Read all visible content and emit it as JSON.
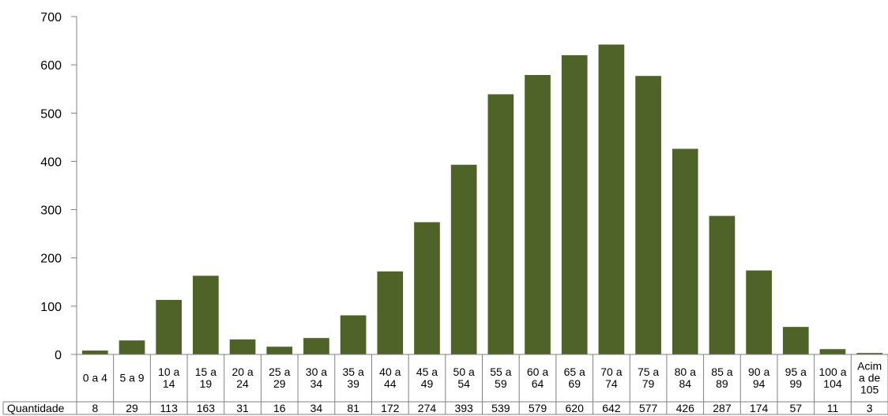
{
  "chart_data": {
    "type": "bar",
    "categories": [
      [
        "0 a 4"
      ],
      [
        "5 a 9"
      ],
      [
        "10 a",
        "14"
      ],
      [
        "15 a",
        "19"
      ],
      [
        "20 a",
        "24"
      ],
      [
        "25 a",
        "29"
      ],
      [
        "30 a",
        "34"
      ],
      [
        "35 a",
        "39"
      ],
      [
        "40 a",
        "44"
      ],
      [
        "45 a",
        "49"
      ],
      [
        "50 a",
        "54"
      ],
      [
        "55 a",
        "59"
      ],
      [
        "60 a",
        "64"
      ],
      [
        "65 a",
        "69"
      ],
      [
        "70 a",
        "74"
      ],
      [
        "75 a",
        "79"
      ],
      [
        "80 a",
        "84"
      ],
      [
        "85 a",
        "89"
      ],
      [
        "90 a",
        "94"
      ],
      [
        "95 a",
        "99"
      ],
      [
        "100 a",
        "104"
      ],
      [
        "Acim",
        "a de",
        "105"
      ]
    ],
    "series": [
      {
        "name": "Quantidade",
        "values": [
          8,
          29,
          113,
          163,
          31,
          16,
          34,
          81,
          172,
          274,
          393,
          539,
          579,
          620,
          642,
          577,
          426,
          287,
          174,
          57,
          11,
          3
        ]
      }
    ],
    "ylim": [
      0,
      700
    ],
    "yticks": [
      "0",
      "100",
      "200",
      "300",
      "400",
      "500",
      "600",
      "700"
    ],
    "grid": false,
    "legend": "none",
    "data_table": true,
    "bar_color": "#4f6228"
  }
}
